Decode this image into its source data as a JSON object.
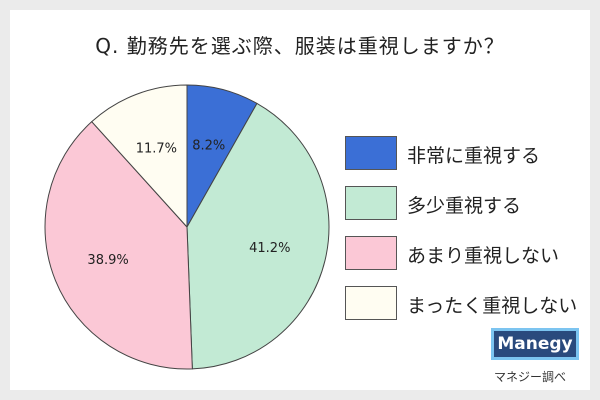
{
  "title": "Q. 勤務先を選ぶ際、服装は重視しますか？",
  "chart_data": {
    "type": "pie",
    "title": "Q. 勤務先を選ぶ際、服装は重視しますか？",
    "start_angle_deg": 0,
    "direction": "clockwise",
    "legend_position": "right",
    "slices": [
      {
        "label": "非常に重視する",
        "value": 8.2,
        "display": "8.2%",
        "color": "#3b6fd6"
      },
      {
        "label": "多少重視する",
        "value": 41.2,
        "display": "41.2%",
        "color": "#c2ead4"
      },
      {
        "label": "あまり重視しない",
        "value": 38.9,
        "display": "38.9%",
        "color": "#fbc8d6"
      },
      {
        "label": "まったく重視しない",
        "value": 11.7,
        "display": "11.7%",
        "color": "#fffdf2"
      }
    ]
  },
  "legend": [
    {
      "label": "非常に重視する",
      "color": "#3b6fd6"
    },
    {
      "label": "多少重視する",
      "color": "#c2ead4"
    },
    {
      "label": "あまり重視しない",
      "color": "#fbc8d6"
    },
    {
      "label": "まったく重視しない",
      "color": "#fffdf2"
    }
  ],
  "logo_text": "Manegy",
  "source_text": "マネジー調べ"
}
